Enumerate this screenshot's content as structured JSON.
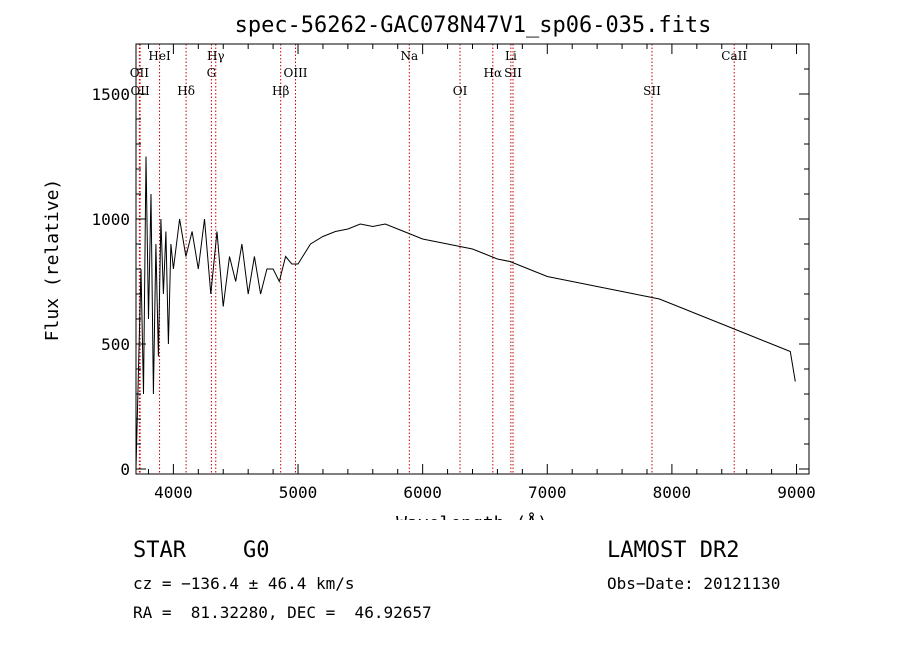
{
  "chart_data": {
    "type": "line",
    "title": "spec-56262-GAC078N47V1_sp06-035.fits",
    "xlabel": "Wavelength (Å)",
    "ylabel": "Flux (relative)",
    "xlim": [
      3700,
      9100
    ],
    "ylim": [
      -20,
      1700
    ],
    "x_ticks": [
      4000,
      5000,
      6000,
      7000,
      8000,
      9000
    ],
    "y_ticks": [
      0,
      500,
      1000,
      1500
    ],
    "grid": false,
    "series": [
      {
        "line_color": "#000000",
        "x": [
          3700,
          3720,
          3740,
          3760,
          3780,
          3800,
          3820,
          3840,
          3860,
          3880,
          3900,
          3920,
          3940,
          3960,
          3980,
          4000,
          4050,
          4100,
          4150,
          4200,
          4250,
          4300,
          4350,
          4400,
          4450,
          4500,
          4550,
          4600,
          4650,
          4700,
          4750,
          4800,
          4850,
          4900,
          4950,
          5000,
          5100,
          5200,
          5300,
          5400,
          5500,
          5600,
          5700,
          5800,
          5900,
          6000,
          6100,
          6200,
          6300,
          6400,
          6500,
          6600,
          6700,
          6800,
          6900,
          7000,
          7100,
          7200,
          7300,
          7400,
          7500,
          7600,
          7700,
          7800,
          7900,
          8000,
          8100,
          8200,
          8300,
          8400,
          8500,
          8600,
          8700,
          8800,
          8900,
          8950,
          8990
        ],
        "y": [
          0,
          400,
          800,
          300,
          1250,
          600,
          1100,
          300,
          900,
          450,
          1000,
          700,
          950,
          500,
          900,
          800,
          1000,
          850,
          950,
          800,
          1000,
          700,
          950,
          650,
          850,
          750,
          900,
          700,
          850,
          700,
          800,
          800,
          750,
          850,
          820,
          820,
          900,
          930,
          950,
          960,
          980,
          970,
          980,
          960,
          940,
          920,
          910,
          900,
          890,
          880,
          860,
          840,
          830,
          810,
          790,
          770,
          760,
          750,
          740,
          730,
          720,
          710,
          700,
          690,
          680,
          660,
          640,
          620,
          600,
          580,
          560,
          540,
          520,
          500,
          480,
          470,
          350
        ]
      }
    ],
    "lines": [
      {
        "label": "OII",
        "x": 3727,
        "label_row": 2
      },
      {
        "label": "OII",
        "x": 3733,
        "label_row": 3
      },
      {
        "label": "HeI",
        "x": 3889,
        "label_row": 1
      },
      {
        "label": "Hδ",
        "x": 4102,
        "label_row": 3
      },
      {
        "label": "Hγ",
        "x": 4340,
        "label_row": 1
      },
      {
        "label": "G",
        "x": 4305,
        "label_row": 2
      },
      {
        "label": "Hβ",
        "x": 4861,
        "label_row": 3
      },
      {
        "label": "OIII",
        "x": 4980,
        "label_row": 2
      },
      {
        "label": "Na",
        "x": 5893,
        "label_row": 1
      },
      {
        "label": "OI",
        "x": 6300,
        "label_row": 3
      },
      {
        "label": "Hα",
        "x": 6563,
        "label_row": 2
      },
      {
        "label": "SII",
        "x": 6725,
        "label_row": 2
      },
      {
        "label": "Li",
        "x": 6708,
        "label_row": 1
      },
      {
        "label": "SII",
        "x": 7840,
        "label_row": 3
      },
      {
        "label": "CaII",
        "x": 8500,
        "label_row": 1
      }
    ],
    "line_color": "#cc0000"
  },
  "info": {
    "object_class": "STAR",
    "subclass": "G0",
    "survey": "LAMOST DR2",
    "cz": "cz = −136.4 ± 46.4 km/s",
    "obs_date": "Obs−Date: 20121130",
    "coords": "RA =  81.32280, DEC =  46.92657"
  }
}
